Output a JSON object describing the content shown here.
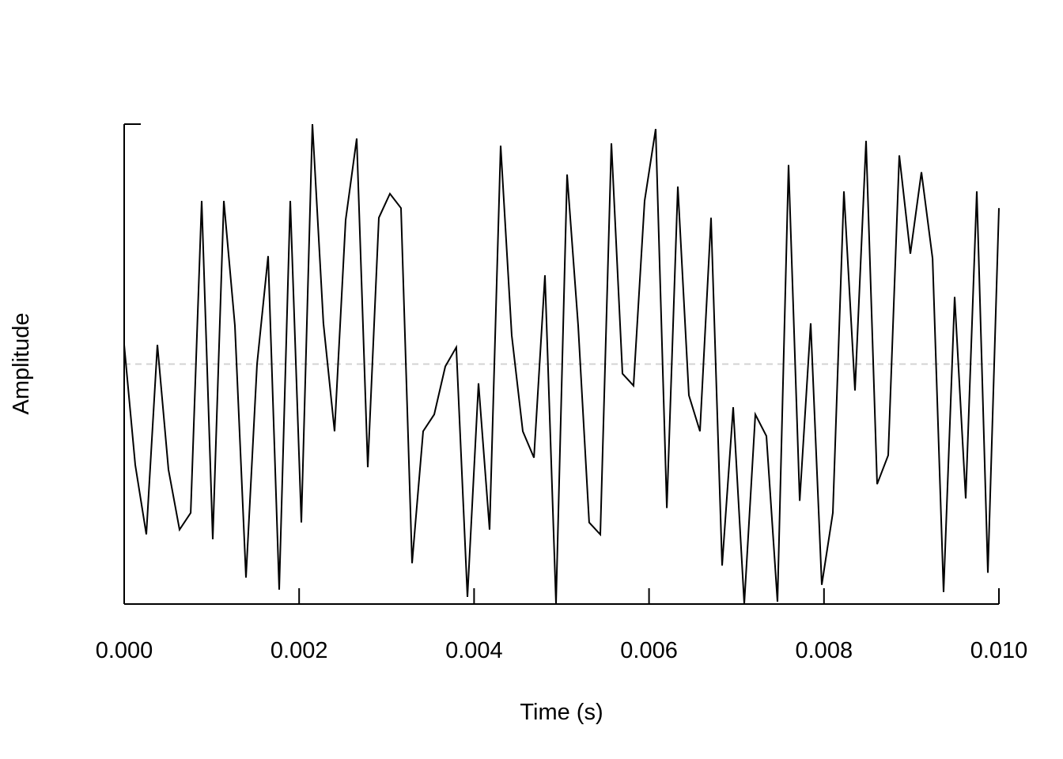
{
  "chart_data": {
    "type": "line",
    "xlabel": "Time (s)",
    "ylabel": "Amplitude",
    "xlim": [
      0.0,
      0.01
    ],
    "ylim": [
      -1.0,
      1.0
    ],
    "x_ticks": [
      "0.000",
      "0.002",
      "0.004",
      "0.006",
      "0.008",
      "0.010"
    ],
    "x_tick_values": [
      0.0,
      0.002,
      0.004,
      0.006,
      0.008,
      0.01
    ],
    "baseline": 0.0,
    "grid": false,
    "colors": {
      "line": "#000000",
      "baseline": "#d3d3d3",
      "axis": "#000000"
    },
    "series": [
      {
        "x": [
          0.0,
          0.000127,
          0.000253,
          0.00038,
          0.000506,
          0.000633,
          0.00076,
          0.000886,
          0.001013,
          0.001139,
          0.001266,
          0.001392,
          0.001519,
          0.001646,
          0.001772,
          0.001899,
          0.002025,
          0.002152,
          0.002278,
          0.002405,
          0.002532,
          0.002658,
          0.002785,
          0.002911,
          0.003038,
          0.003165,
          0.003291,
          0.003418,
          0.003544,
          0.003671,
          0.003797,
          0.003924,
          0.004051,
          0.004177,
          0.004304,
          0.00443,
          0.004557,
          0.004684,
          0.00481,
          0.004937,
          0.005063,
          0.00519,
          0.005316,
          0.005443,
          0.00557,
          0.005696,
          0.005823,
          0.005949,
          0.006076,
          0.006203,
          0.006329,
          0.006456,
          0.006582,
          0.006709,
          0.006835,
          0.006962,
          0.007089,
          0.007215,
          0.007342,
          0.007468,
          0.007595,
          0.007722,
          0.007848,
          0.007975,
          0.008101,
          0.008228,
          0.008354,
          0.008481,
          0.008608,
          0.008734,
          0.008861,
          0.008987,
          0.009114,
          0.009241,
          0.009367,
          0.009494,
          0.00962,
          0.009747,
          0.009873,
          0.01
        ],
        "y": [
          0.08,
          -0.42,
          -0.71,
          0.08,
          -0.44,
          -0.69,
          -0.62,
          0.68,
          -0.73,
          0.68,
          0.16,
          -0.89,
          0.0,
          0.45,
          -0.94,
          0.68,
          -0.66,
          1.0,
          0.17,
          -0.28,
          0.6,
          0.94,
          -0.43,
          0.61,
          0.71,
          0.65,
          -0.83,
          -0.28,
          -0.21,
          -0.01,
          0.07,
          -0.97,
          -0.08,
          -0.69,
          0.91,
          0.12,
          -0.28,
          -0.39,
          0.37,
          -1.0,
          0.79,
          0.16,
          -0.66,
          -0.71,
          0.92,
          -0.04,
          -0.09,
          0.68,
          0.98,
          -0.6,
          0.74,
          -0.13,
          -0.28,
          0.61,
          -0.84,
          -0.18,
          -1.0,
          -0.21,
          -0.3,
          -0.99,
          0.83,
          -0.57,
          0.17,
          -0.92,
          -0.62,
          0.72,
          -0.11,
          0.93,
          -0.5,
          -0.38,
          0.87,
          0.46,
          0.8,
          0.44,
          -0.95,
          0.28,
          -0.56,
          0.72,
          -0.87,
          0.65
        ]
      }
    ]
  }
}
